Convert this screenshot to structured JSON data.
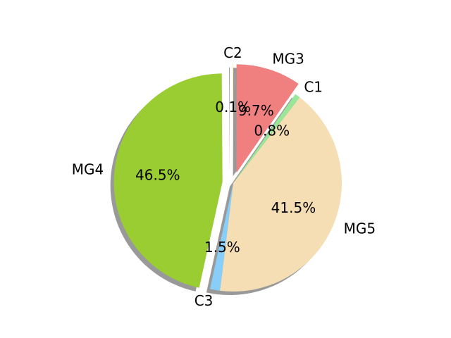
{
  "chart_data": {
    "type": "pie",
    "title": "",
    "start_angle_deg": 90,
    "direction": "counterclockwise",
    "shadow": true,
    "slices": [
      {
        "label": "C2",
        "value": 0.1,
        "pct_label": "0.1%",
        "color": "#f5f5a0",
        "explode": 0.1
      },
      {
        "label": "MG4",
        "value": 46.5,
        "pct_label": "46.5%",
        "color": "#9acd32",
        "explode": 0.1
      },
      {
        "label": "C3",
        "value": 1.5,
        "pct_label": "1.5%",
        "color": "#87cefa",
        "explode": 0.0
      },
      {
        "label": "MG5",
        "value": 41.5,
        "pct_label": "41.5%",
        "color": "#f5deb3",
        "explode": 0.0
      },
      {
        "label": "C1",
        "value": 0.8,
        "pct_label": "0.8%",
        "color": "#98e698",
        "explode": 0.0
      },
      {
        "label": "MG3",
        "value": 9.7,
        "pct_label": "9.7%",
        "color": "#f08080",
        "explode": 0.1
      }
    ]
  }
}
